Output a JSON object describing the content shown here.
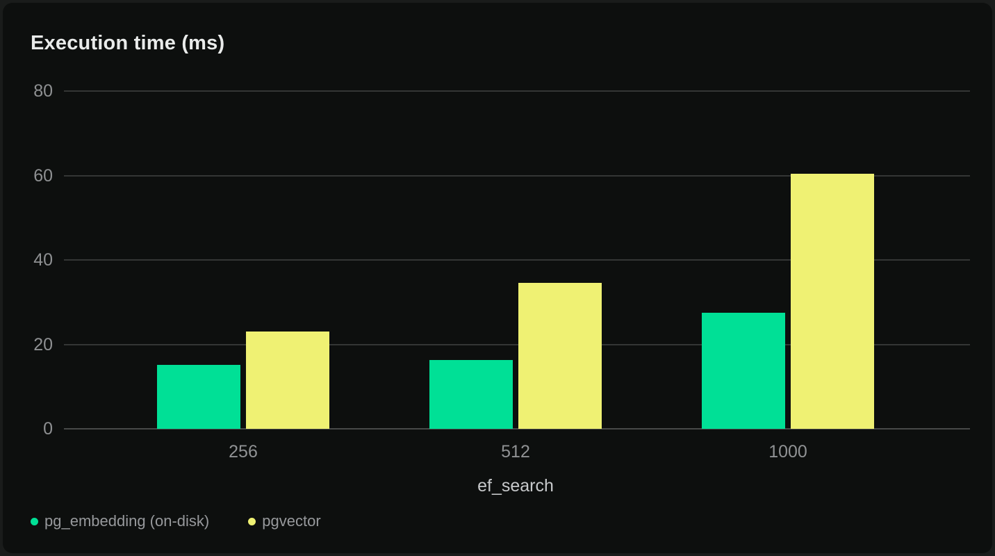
{
  "title": "Execution time (ms)",
  "colors": {
    "background_outer": "#1a1c1b",
    "card_background": "#0d0f0e",
    "gridline": "#343635",
    "axis_line": "#474948",
    "title_text": "#e9ebea",
    "tick_text": "#8e9092",
    "axis_title_text": "#c7c9cb",
    "legend_text": "#97999c",
    "series_green": "#00e096",
    "series_yellow": "#eff173"
  },
  "chart_data": {
    "type": "bar",
    "title": "Execution time (ms)",
    "xlabel": "ef_search",
    "ylabel": "Execution time (ms)",
    "categories": [
      "256",
      "512",
      "1000"
    ],
    "series": [
      {
        "name": "pg_embedding (on-disk)",
        "color": "#00e096",
        "values": [
          15.1,
          16.3,
          27.5
        ]
      },
      {
        "name": "pgvector",
        "color": "#eff173",
        "values": [
          23,
          34.5,
          60.4
        ]
      }
    ],
    "ylim": [
      0,
      80
    ],
    "yticks": [
      0,
      20,
      40,
      60,
      80
    ],
    "grid": true,
    "legend_position": "bottom-left"
  },
  "legend": {
    "items": [
      {
        "label": "pg_embedding (on-disk)",
        "color": "#00e096"
      },
      {
        "label": "pgvector",
        "color": "#eff173"
      }
    ]
  }
}
